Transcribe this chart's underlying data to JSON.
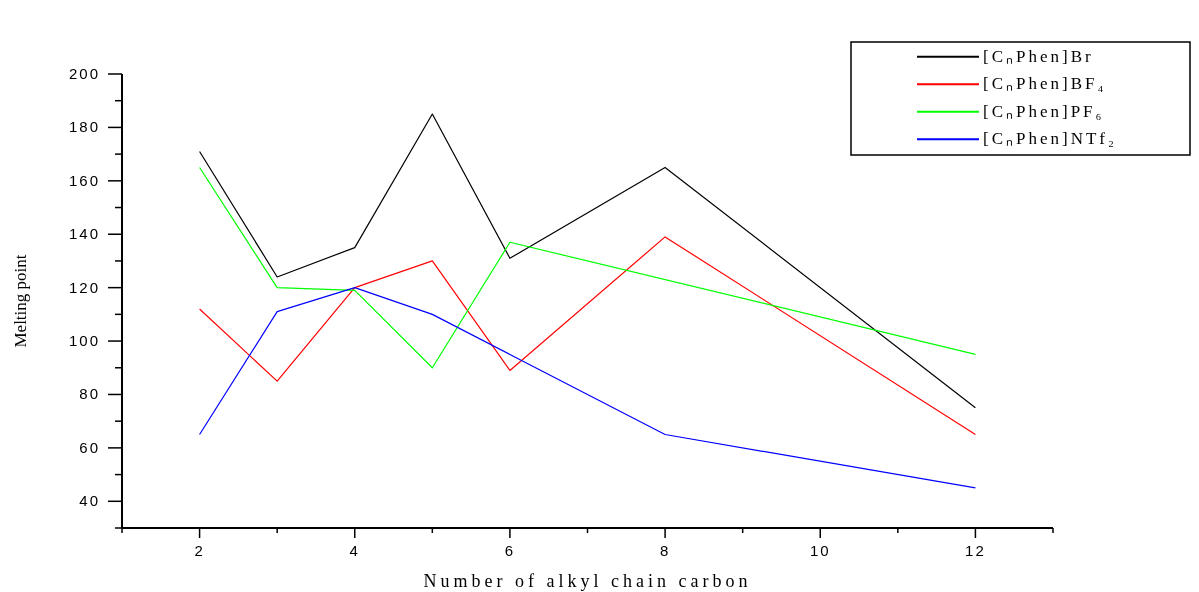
{
  "chart_data": {
    "type": "line",
    "xlabel": "Number of alkyl chain carbon",
    "ylabel": "Melting point",
    "x": [
      2,
      3,
      4,
      5,
      6,
      8,
      12
    ],
    "series": [
      {
        "name": "[CₙPhen]Br",
        "color": "#000000",
        "values": [
          171,
          124,
          135,
          185,
          131,
          165,
          75
        ]
      },
      {
        "name": "[CₙPhen]BF₄",
        "color": "#ff0000",
        "values": [
          112,
          85,
          120,
          130,
          89,
          139,
          65
        ]
      },
      {
        "name": "[CₙPhen]PF₆",
        "color": "#00ff00",
        "x": [
          2,
          3,
          4,
          5,
          6,
          12
        ],
        "values": [
          165,
          120,
          119,
          90,
          137,
          95
        ]
      },
      {
        "name": "[CₙPhen]NTf₂",
        "color": "#0000ff",
        "values": [
          65,
          111,
          120,
          110,
          95,
          65,
          45
        ]
      }
    ],
    "xlim": [
      1,
      13
    ],
    "xticks": [
      {
        "value": 1,
        "label": null
      },
      2,
      {
        "value": 3,
        "label": null
      },
      4,
      {
        "value": 5,
        "label": null
      },
      6,
      {
        "value": 7,
        "label": null
      },
      8,
      {
        "value": 9,
        "label": null
      },
      10,
      {
        "value": 11,
        "label": null
      },
      12,
      {
        "value": 13,
        "label": null
      }
    ],
    "ylim": [
      30,
      200
    ],
    "yticks": [
      {
        "value": 30,
        "label": null
      },
      40,
      {
        "value": 50,
        "label": null
      },
      60,
      {
        "value": 70,
        "label": null
      },
      80,
      {
        "value": 90,
        "label": null
      },
      100,
      {
        "value": 110,
        "label": null
      },
      120,
      {
        "value": 130,
        "label": null
      },
      140,
      {
        "value": 150,
        "label": null
      },
      160,
      {
        "value": 170,
        "label": null
      },
      180,
      {
        "value": 190,
        "label": null
      },
      200
    ],
    "legend": "top right",
    "grid": false,
    "marker": "none",
    "line_style": "solid"
  }
}
